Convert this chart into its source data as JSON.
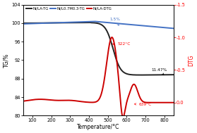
{
  "title": "",
  "xlabel": "Temperature/°C",
  "ylabel_left": "TG/%",
  "ylabel_right": "DTG",
  "xlim": [
    50,
    850
  ],
  "ylim_left": [
    80,
    104
  ],
  "ylim_right": [
    0.2,
    -1.5
  ],
  "yticks_left": [
    80,
    84,
    88,
    92,
    96,
    100,
    104
  ],
  "yticks_right": [
    0.0,
    -0.5,
    -1.0,
    -1.5
  ],
  "ytick_labels_right": [
    "0.0",
    "-0.5",
    "-1.0",
    "-1.5"
  ],
  "legend_entries": [
    "Ni/LA-TG",
    "Ni/L0.7M0.3-TG",
    "Ni/LA-DTG"
  ],
  "legend_colors": [
    "#222222",
    "#4472c4",
    "#cc0000"
  ],
  "background_color": "#ffffff",
  "line_width": 1.4
}
